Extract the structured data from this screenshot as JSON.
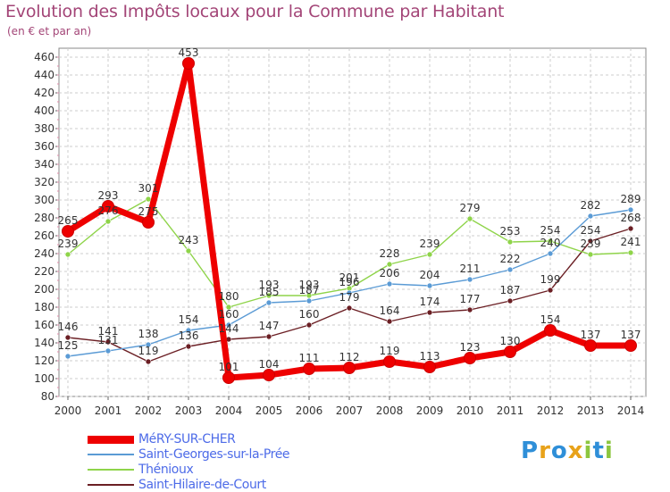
{
  "title": "Evolution des Impôts locaux pour la Commune par Habitant",
  "subtitle": "(en € et par an)",
  "brand": {
    "text": [
      "P",
      "r",
      "o",
      "x",
      "i",
      "t",
      "i"
    ],
    "colors": [
      "#2f8fd8",
      "#e8a21a",
      "#2f8fd8",
      "#e8a21a",
      "#8cc63f",
      "#2f8fd8",
      "#8cc63f"
    ]
  },
  "chart_data": {
    "type": "line",
    "x": [
      "2000",
      "2001",
      "2002",
      "2003",
      "2004",
      "2005",
      "2006",
      "2007",
      "2008",
      "2009",
      "2010",
      "2011",
      "2012",
      "2013",
      "2014"
    ],
    "y_ticks": [
      80,
      100,
      120,
      140,
      160,
      180,
      200,
      220,
      240,
      260,
      280,
      300,
      320,
      340,
      360,
      380,
      400,
      420,
      440,
      460
    ],
    "ylim": [
      80,
      470
    ],
    "grid": true,
    "legend_position": "bottom-left",
    "series": [
      {
        "name": "Saint-Hilaire-de-Court",
        "color": "#6b1f24",
        "values": [
          146,
          141,
          119,
          136,
          144,
          147,
          160,
          179,
          164,
          174,
          177,
          187,
          199,
          254,
          268
        ]
      },
      {
        "name": "Thénioux",
        "color": "#8fd44a",
        "values": [
          239,
          276,
          301,
          243,
          180,
          193,
          193,
          201,
          228,
          239,
          279,
          253,
          254,
          239,
          241
        ]
      },
      {
        "name": "Saint-Georges-sur-la-Prée",
        "color": "#5b9bd5",
        "values": [
          125,
          131,
          138,
          154,
          160,
          185,
          187,
          196,
          206,
          204,
          211,
          222,
          240,
          282,
          289
        ]
      },
      {
        "name": "MéRY-SUR-CHER",
        "color": "#ee0000",
        "values": [
          265,
          293,
          275,
          453,
          101,
          104,
          111,
          112,
          119,
          113,
          123,
          130,
          154,
          137,
          137
        ]
      }
    ],
    "data_labels": [
      {
        "series": 0,
        "labels": [
          "146",
          "141",
          "119",
          "136",
          "144",
          "147",
          "160",
          "179",
          "164",
          "174",
          "177",
          "187",
          "199",
          "254",
          "268"
        ]
      },
      {
        "series": 1,
        "labels": [
          "239",
          "276",
          "301",
          "243",
          "180",
          "193",
          "193",
          "201",
          "228",
          "239",
          "279",
          "253",
          "254",
          "239",
          "241"
        ]
      },
      {
        "series": 2,
        "labels": [
          "125",
          "131",
          "138",
          "154",
          "160",
          "185",
          "187",
          "196",
          "206",
          "204",
          "211",
          "222",
          "240",
          "282",
          "289"
        ]
      },
      {
        "series": 3,
        "labels": [
          "265",
          "293",
          "275",
          "453",
          "101",
          "104",
          "111",
          "112",
          "119",
          "113",
          "123",
          "130",
          "154",
          "137",
          "137"
        ]
      }
    ]
  }
}
